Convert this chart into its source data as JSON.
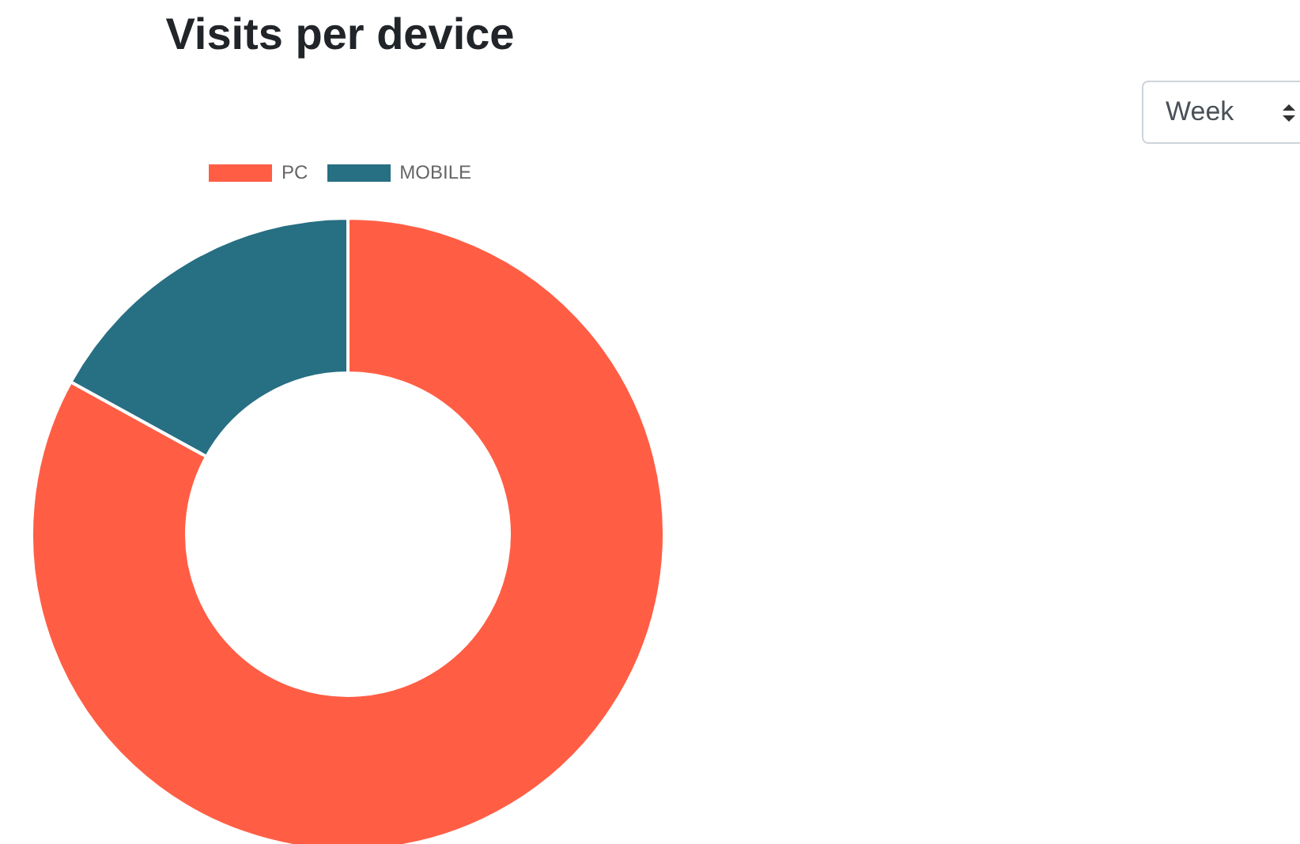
{
  "chart_data": {
    "type": "donut",
    "title": "Visits per device",
    "categories": [
      "PC",
      "MOBILE"
    ],
    "values": [
      83,
      17
    ],
    "colors": [
      "#ff5e45",
      "#276f83"
    ],
    "legend": "top",
    "annotations": [
      "Week"
    ]
  }
}
